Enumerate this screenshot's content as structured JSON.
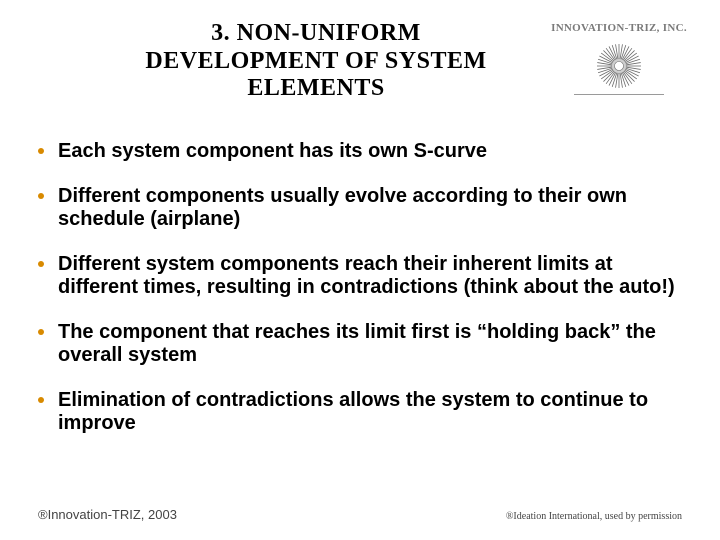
{
  "colors": {
    "bullet_dot": "#d88a00",
    "swash_stroke": "#e6c24a",
    "logo_ray": "#6b6b6b",
    "logo_core": "#ffffff",
    "logo_glow": "#cfcfcf"
  },
  "header": {
    "title": "3. NON-UNIFORM DEVELOPMENT OF SYSTEM ELEMENTS",
    "company": "INNOVATION-TRIZ, INC."
  },
  "bullets": [
    "Each system component has its own S-curve",
    "Different components usually evolve according to their own schedule (airplane)",
    "Different system components reach their inherent limits at different times, resulting in contradictions (think about the auto!)",
    "The component that reaches its limit first is “holding back” the overall system",
    "Elimination of contradictions allows the system to continue to improve"
  ],
  "footer": {
    "left": "®Innovation-TRIZ, 2003",
    "right": "®Ideation International, used by permission"
  }
}
